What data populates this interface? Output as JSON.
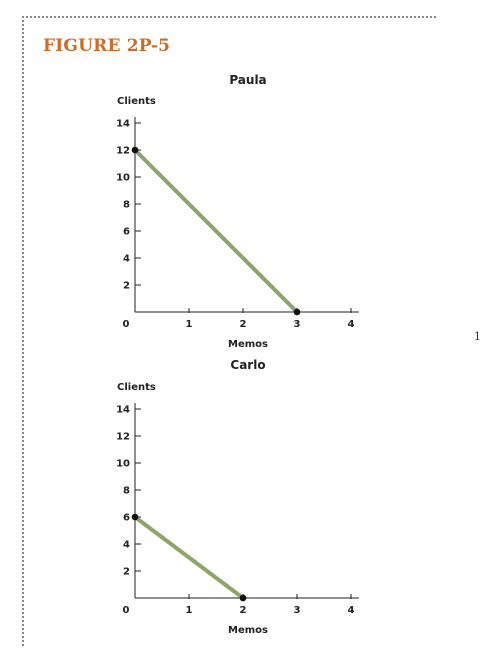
{
  "figure_label": "FIGURE 2P-5",
  "margin_mark": "1",
  "colors": {
    "figure_label": "#cf6b28",
    "line": "#8fa46a",
    "point": "#111111",
    "axis": "#222222"
  },
  "chart_data": [
    {
      "type": "line",
      "title": "Paula",
      "xlabel": "Memos",
      "ylabel": "Clients",
      "xlim": [
        0,
        4
      ],
      "ylim": [
        0,
        14
      ],
      "x_ticks": [
        "0",
        "1",
        "2",
        "3",
        "4"
      ],
      "y_ticks": [
        "2",
        "4",
        "6",
        "8",
        "10",
        "12",
        "14"
      ],
      "grid": false,
      "series": [
        {
          "points": [
            [
              0,
              12
            ],
            [
              3,
              0
            ]
          ]
        }
      ]
    },
    {
      "type": "line",
      "title": "Carlo",
      "xlabel": "Memos",
      "ylabel": "Clients",
      "xlim": [
        0,
        4
      ],
      "ylim": [
        0,
        14
      ],
      "x_ticks": [
        "0",
        "1",
        "2",
        "3",
        "4"
      ],
      "y_ticks": [
        "2",
        "4",
        "6",
        "8",
        "10",
        "12",
        "14"
      ],
      "grid": false,
      "series": [
        {
          "points": [
            [
              0,
              6
            ],
            [
              2,
              0
            ]
          ]
        }
      ]
    }
  ]
}
